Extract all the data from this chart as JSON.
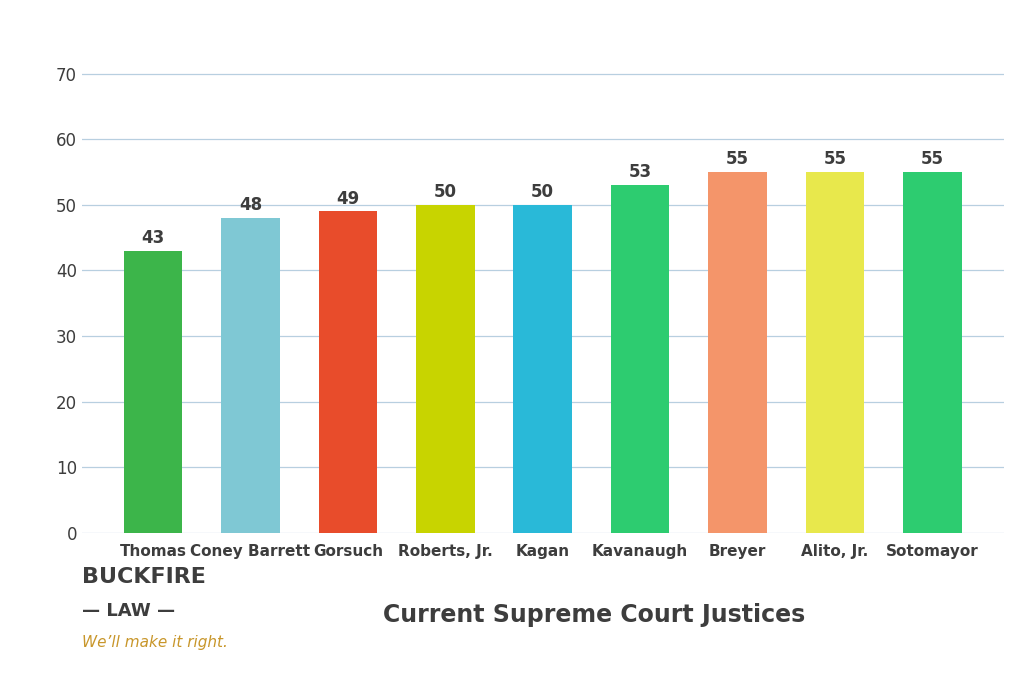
{
  "categories": [
    "Thomas",
    "Coney Barrett",
    "Gorsuch",
    "Roberts, Jr.",
    "Kagan",
    "Kavanaugh",
    "Breyer",
    "Alito, Jr.",
    "Sotomayor"
  ],
  "values": [
    43,
    48,
    49,
    50,
    50,
    53,
    55,
    55,
    55
  ],
  "bar_colors": [
    "#3cb54a",
    "#7fc8d4",
    "#e84c2b",
    "#c8d400",
    "#29b9d8",
    "#2dcc70",
    "#f4956a",
    "#e8e84c",
    "#2dcc70"
  ],
  "ylim": [
    0,
    75
  ],
  "yticks": [
    0,
    10,
    20,
    30,
    40,
    50,
    60,
    70
  ],
  "title": "Current Supreme Court Justices",
  "title_fontsize": 17,
  "title_color": "#3d3d3d",
  "value_fontsize": 12,
  "xlabel_fontsize": 11,
  "background_color": "#ffffff",
  "grid_color": "#b8cfe0",
  "tick_label_color": "#3d3d3d",
  "logo_text_buckfire": "BUCKFIRE",
  "logo_text_law": "— LAW —",
  "logo_text_tagline": "We’ll make it right.",
  "logo_buckfire_color": "#3d3d3d",
  "logo_law_color": "#3d3d3d",
  "logo_tagline_color": "#c8962a"
}
